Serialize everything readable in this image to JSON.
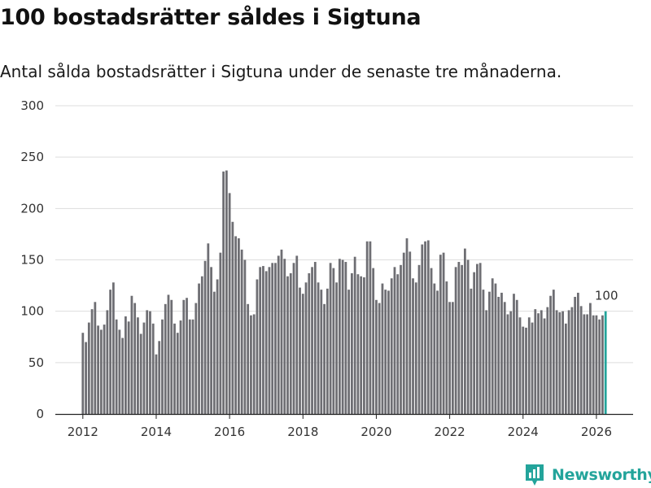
{
  "title": "100 bostadsrätter såldes i Sigtuna",
  "subtitle": "Antal sålda bostadsrätter i Sigtuna under de senaste tre månaderna.",
  "brand": "Newsworthy",
  "colors": {
    "bar": "#6e6e73",
    "highlight": "#23a49b",
    "grid": "#dddddd",
    "brand": "#23a49b"
  },
  "chart_data": {
    "type": "bar",
    "title": "100 bostadsrätter såldes i Sigtuna",
    "xlabel": "",
    "ylabel": "",
    "ylim": [
      0,
      300
    ],
    "yticks": [
      0,
      50,
      100,
      150,
      200,
      250,
      300
    ],
    "xlim": [
      2011.25,
      2027.0
    ],
    "xticks": [
      2012,
      2014,
      2016,
      2018,
      2020,
      2022,
      2024,
      2026
    ],
    "start": {
      "year": 2012,
      "month": 1
    },
    "annotation": {
      "label": "100"
    },
    "values": [
      79,
      70,
      89,
      102,
      109,
      86,
      82,
      87,
      101,
      121,
      128,
      92,
      82,
      74,
      95,
      90,
      115,
      108,
      94,
      78,
      89,
      101,
      100,
      88,
      58,
      71,
      92,
      107,
      116,
      111,
      88,
      79,
      91,
      111,
      113,
      92,
      92,
      108,
      127,
      134,
      149,
      166,
      143,
      119,
      131,
      157,
      236,
      237,
      215,
      187,
      173,
      171,
      160,
      150,
      107,
      96,
      97,
      131,
      143,
      144,
      139,
      143,
      147,
      147,
      154,
      160,
      151,
      134,
      137,
      147,
      154,
      123,
      117,
      128,
      137,
      143,
      148,
      128,
      121,
      107,
      122,
      147,
      142,
      128,
      151,
      150,
      148,
      121,
      137,
      153,
      136,
      134,
      133,
      168,
      168,
      142,
      111,
      108,
      127,
      121,
      120,
      132,
      143,
      136,
      145,
      157,
      171,
      158,
      132,
      128,
      145,
      165,
      168,
      169,
      142,
      127,
      120,
      155,
      157,
      129,
      109,
      109,
      143,
      148,
      145,
      161,
      150,
      122,
      138,
      146,
      147,
      121,
      101,
      119,
      132,
      127,
      114,
      118,
      109,
      97,
      100,
      117,
      111,
      94,
      85,
      84,
      94,
      89,
      102,
      98,
      101,
      93,
      104,
      115,
      121,
      101,
      99,
      100,
      88,
      101,
      104,
      114,
      118,
      105,
      97,
      97,
      108,
      96,
      96,
      92,
      96,
      100
    ]
  }
}
